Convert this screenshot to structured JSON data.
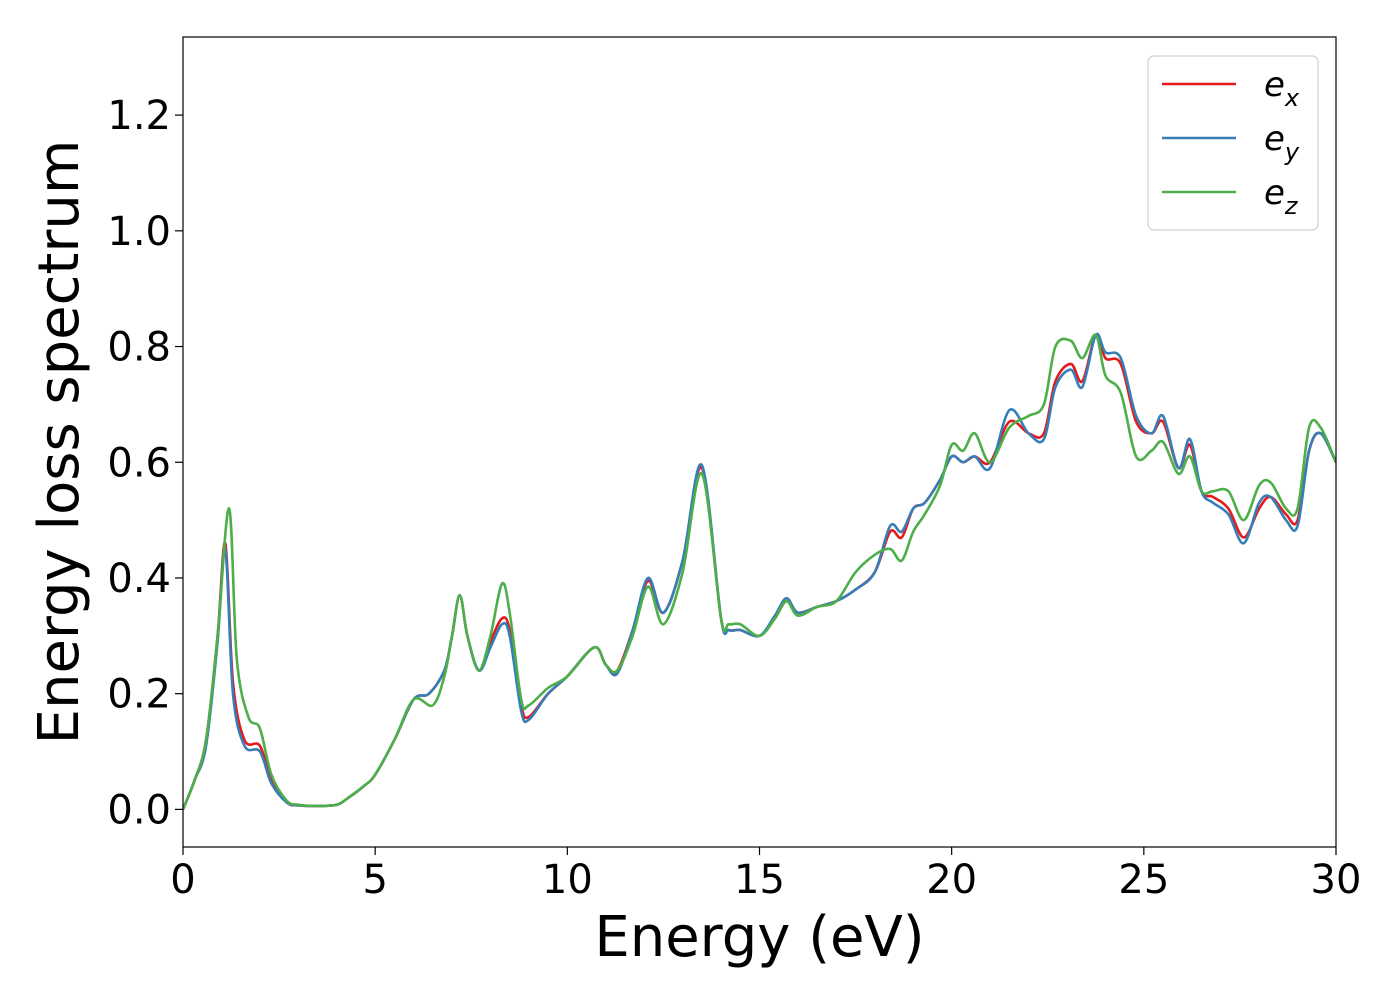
{
  "chart_data": {
    "type": "line",
    "xlabel": "Energy (eV)",
    "ylabel": "Energy loss spectrum",
    "xlim": [
      0,
      30
    ],
    "ylim": [
      -0.065,
      1.335
    ],
    "xticks": [
      0,
      5,
      10,
      15,
      20,
      25,
      30
    ],
    "yticks": [
      0.0,
      0.2,
      0.4,
      0.6,
      0.8,
      1.0,
      1.2
    ],
    "xtick_labels": [
      "0",
      "5",
      "10",
      "15",
      "20",
      "25",
      "30"
    ],
    "ytick_labels": [
      "0.0",
      "0.2",
      "0.4",
      "0.6",
      "0.8",
      "1.0",
      "1.2"
    ],
    "grid": false,
    "legend_position": "top-right",
    "series": [
      {
        "name": "e_x",
        "legend_main": "e",
        "legend_sub": "x",
        "color": "#e41a1c",
        "x": [
          0,
          0.3,
          0.6,
          0.9,
          1.1,
          1.3,
          1.6,
          2.0,
          2.3,
          2.7,
          3.0,
          3.5,
          4.0,
          4.3,
          4.7,
          5.0,
          5.5,
          6.0,
          6.4,
          6.8,
          7.0,
          7.2,
          7.4,
          7.7,
          8.0,
          8.3,
          8.5,
          8.8,
          9.0,
          9.5,
          10.0,
          10.7,
          11.0,
          11.3,
          11.7,
          12.1,
          12.5,
          13.0,
          13.5,
          14.0,
          14.2,
          14.5,
          15.0,
          15.4,
          15.7,
          16.0,
          16.5,
          17.0,
          17.5,
          18.0,
          18.4,
          18.7,
          19.0,
          19.3,
          19.7,
          20.0,
          20.3,
          20.6,
          21.0,
          21.5,
          22.0,
          22.4,
          22.7,
          23.1,
          23.4,
          23.75,
          24.0,
          24.4,
          24.8,
          25.2,
          25.5,
          25.9,
          26.2,
          26.5,
          26.8,
          27.2,
          27.6,
          28.0,
          28.3,
          28.7,
          29.0,
          29.3,
          29.6,
          30.0
        ],
        "values": [
          0.0,
          0.05,
          0.12,
          0.3,
          0.46,
          0.22,
          0.12,
          0.11,
          0.05,
          0.012,
          0.007,
          0.006,
          0.008,
          0.02,
          0.04,
          0.06,
          0.12,
          0.19,
          0.2,
          0.24,
          0.3,
          0.37,
          0.3,
          0.24,
          0.29,
          0.33,
          0.31,
          0.18,
          0.16,
          0.2,
          0.23,
          0.28,
          0.25,
          0.24,
          0.31,
          0.395,
          0.34,
          0.43,
          0.59,
          0.33,
          0.31,
          0.31,
          0.3,
          0.33,
          0.36,
          0.34,
          0.35,
          0.36,
          0.38,
          0.41,
          0.48,
          0.47,
          0.52,
          0.53,
          0.57,
          0.61,
          0.6,
          0.61,
          0.6,
          0.67,
          0.65,
          0.65,
          0.74,
          0.77,
          0.74,
          0.82,
          0.78,
          0.77,
          0.67,
          0.65,
          0.67,
          0.59,
          0.63,
          0.55,
          0.54,
          0.52,
          0.47,
          0.52,
          0.54,
          0.51,
          0.5,
          0.62,
          0.65,
          0.6
        ]
      },
      {
        "name": "e_y",
        "legend_main": "e",
        "legend_sub": "y",
        "color": "#377eb8",
        "x": [
          0,
          0.3,
          0.6,
          0.9,
          1.1,
          1.3,
          1.6,
          2.0,
          2.3,
          2.7,
          3.0,
          3.5,
          4.0,
          4.3,
          4.7,
          5.0,
          5.5,
          6.0,
          6.4,
          6.8,
          7.0,
          7.2,
          7.4,
          7.7,
          8.0,
          8.3,
          8.5,
          8.8,
          9.0,
          9.5,
          10.0,
          10.7,
          11.0,
          11.3,
          11.7,
          12.1,
          12.5,
          13.0,
          13.5,
          14.0,
          14.2,
          14.5,
          15.0,
          15.4,
          15.7,
          16.0,
          16.5,
          17.0,
          17.5,
          18.0,
          18.4,
          18.7,
          19.0,
          19.3,
          19.7,
          20.0,
          20.3,
          20.6,
          21.0,
          21.5,
          22.0,
          22.4,
          22.7,
          23.1,
          23.4,
          23.75,
          24.0,
          24.4,
          24.8,
          25.2,
          25.5,
          25.9,
          26.2,
          26.5,
          26.8,
          27.2,
          27.6,
          28.0,
          28.3,
          28.7,
          29.0,
          29.3,
          29.6,
          30.0
        ],
        "values": [
          0.0,
          0.05,
          0.11,
          0.29,
          0.45,
          0.2,
          0.11,
          0.1,
          0.045,
          0.012,
          0.007,
          0.006,
          0.008,
          0.02,
          0.04,
          0.06,
          0.12,
          0.19,
          0.2,
          0.24,
          0.3,
          0.37,
          0.3,
          0.24,
          0.28,
          0.32,
          0.3,
          0.17,
          0.155,
          0.2,
          0.23,
          0.28,
          0.25,
          0.235,
          0.31,
          0.4,
          0.34,
          0.43,
          0.595,
          0.33,
          0.31,
          0.31,
          0.3,
          0.335,
          0.365,
          0.34,
          0.35,
          0.36,
          0.38,
          0.41,
          0.49,
          0.48,
          0.52,
          0.53,
          0.57,
          0.61,
          0.6,
          0.61,
          0.59,
          0.69,
          0.65,
          0.64,
          0.73,
          0.76,
          0.73,
          0.82,
          0.79,
          0.78,
          0.68,
          0.65,
          0.68,
          0.59,
          0.64,
          0.55,
          0.53,
          0.51,
          0.46,
          0.53,
          0.54,
          0.5,
          0.49,
          0.62,
          0.65,
          0.6
        ]
      },
      {
        "name": "e_z",
        "legend_main": "e",
        "legend_sub": "z",
        "color": "#4daf4a",
        "x": [
          0,
          0.3,
          0.6,
          0.9,
          1.2,
          1.4,
          1.7,
          2.0,
          2.3,
          2.7,
          3.0,
          3.5,
          4.0,
          4.3,
          4.7,
          5.0,
          5.5,
          6.0,
          6.5,
          6.8,
          7.0,
          7.2,
          7.4,
          7.7,
          8.0,
          8.3,
          8.5,
          8.8,
          9.0,
          9.5,
          10.0,
          10.7,
          11.0,
          11.3,
          11.7,
          12.1,
          12.5,
          13.0,
          13.5,
          14.0,
          14.2,
          14.5,
          15.0,
          15.4,
          15.7,
          16.0,
          16.5,
          17.0,
          17.5,
          18.0,
          18.4,
          18.7,
          19.0,
          19.3,
          19.7,
          20.0,
          20.3,
          20.6,
          21.0,
          21.5,
          22.0,
          22.4,
          22.7,
          23.1,
          23.4,
          23.75,
          24.0,
          24.4,
          24.8,
          25.2,
          25.5,
          25.9,
          26.2,
          26.5,
          26.8,
          27.2,
          27.6,
          28.0,
          28.3,
          28.7,
          29.0,
          29.3,
          29.6,
          30.0
        ],
        "values": [
          0.0,
          0.05,
          0.12,
          0.3,
          0.52,
          0.26,
          0.16,
          0.14,
          0.06,
          0.015,
          0.008,
          0.006,
          0.008,
          0.02,
          0.04,
          0.06,
          0.12,
          0.19,
          0.18,
          0.23,
          0.3,
          0.37,
          0.3,
          0.24,
          0.3,
          0.39,
          0.34,
          0.19,
          0.18,
          0.21,
          0.23,
          0.28,
          0.25,
          0.24,
          0.3,
          0.385,
          0.32,
          0.41,
          0.58,
          0.33,
          0.32,
          0.32,
          0.3,
          0.33,
          0.36,
          0.335,
          0.35,
          0.36,
          0.41,
          0.44,
          0.45,
          0.43,
          0.48,
          0.51,
          0.56,
          0.63,
          0.62,
          0.65,
          0.6,
          0.66,
          0.68,
          0.7,
          0.8,
          0.81,
          0.78,
          0.82,
          0.75,
          0.72,
          0.61,
          0.62,
          0.635,
          0.58,
          0.61,
          0.55,
          0.55,
          0.55,
          0.5,
          0.56,
          0.565,
          0.52,
          0.52,
          0.66,
          0.66,
          0.6
        ]
      }
    ]
  }
}
